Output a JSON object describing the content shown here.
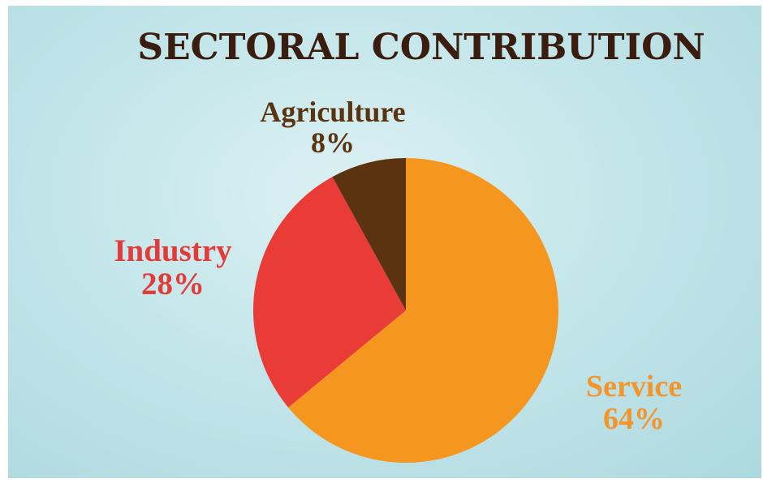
{
  "chart_data": {
    "type": "pie",
    "title": "SECTORAL CONTRIBUTION",
    "slices": [
      {
        "label": "Service",
        "value": 64,
        "value_label": "64%",
        "color": "#f5961f"
      },
      {
        "label": "Industry",
        "value": 28,
        "value_label": "28%",
        "color": "#ea3c37"
      },
      {
        "label": "Agriculture",
        "value": 8,
        "value_label": "8%",
        "color": "#5c3310"
      }
    ],
    "start_angle_deg": 0,
    "direction": "clockwise",
    "background_color": "#c4e6ea"
  }
}
